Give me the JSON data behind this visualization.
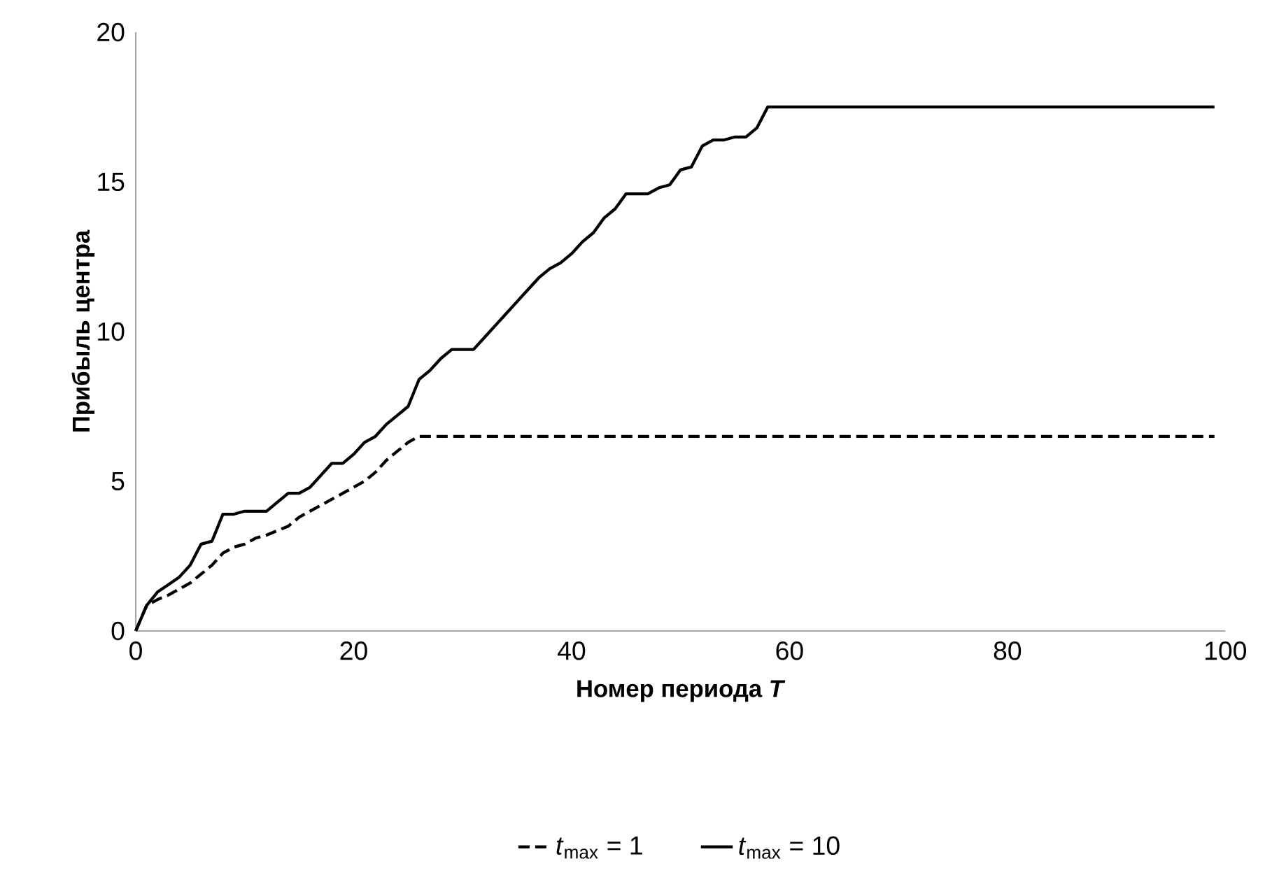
{
  "chart_data": {
    "type": "line",
    "xlabel": "Номер периода *T*",
    "ylabel": "Прибыль  центра",
    "xlim": [
      0,
      100
    ],
    "ylim": [
      0,
      20
    ],
    "xticks": [
      0,
      20,
      40,
      60,
      80,
      100
    ],
    "yticks": [
      0,
      5,
      10,
      15,
      20
    ],
    "legend": "bottom",
    "series": [
      {
        "name": "*t*$_{max}$ = 1",
        "color": "#000000",
        "line_style": "dashed",
        "x": [
          0,
          1,
          2,
          3,
          4,
          5,
          6,
          7,
          8,
          9,
          10,
          11,
          12,
          14,
          15,
          17,
          19,
          21,
          22,
          23,
          24,
          25,
          26,
          27,
          99
        ],
        "values": [
          0,
          0.85,
          1.05,
          1.2,
          1.4,
          1.6,
          1.9,
          2.2,
          2.6,
          2.8,
          2.9,
          3.1,
          3.2,
          3.5,
          3.8,
          4.2,
          4.6,
          5.0,
          5.3,
          5.7,
          6.0,
          6.3,
          6.5,
          6.5,
          6.5
        ]
      },
      {
        "name": "*t*$_{max}$ = 10",
        "color": "#000000",
        "line_style": "solid",
        "x": [
          0,
          1,
          2,
          3,
          4,
          5,
          6,
          7,
          8,
          9,
          10,
          11,
          12,
          13,
          14,
          15,
          16,
          17,
          18,
          19,
          20,
          21,
          22,
          23,
          24,
          25,
          26,
          27,
          28,
          29,
          30,
          31,
          32,
          33,
          34,
          35,
          36,
          37,
          38,
          39,
          40,
          41,
          42,
          43,
          44,
          45,
          46,
          47,
          48,
          49,
          50,
          51,
          52,
          53,
          54,
          55,
          56,
          57,
          58,
          99
        ],
        "values": [
          0,
          0.85,
          1.3,
          1.55,
          1.8,
          2.2,
          2.9,
          3.0,
          3.9,
          3.9,
          4.0,
          4.0,
          4.0,
          4.3,
          4.6,
          4.6,
          4.8,
          5.2,
          5.6,
          5.6,
          5.9,
          6.3,
          6.5,
          6.9,
          7.2,
          7.5,
          8.4,
          8.7,
          9.1,
          9.4,
          9.4,
          9.4,
          9.8,
          10.2,
          10.6,
          11.0,
          11.4,
          11.8,
          12.1,
          12.3,
          12.6,
          13.0,
          13.3,
          13.8,
          14.1,
          14.6,
          14.6,
          14.6,
          14.8,
          14.9,
          15.4,
          15.5,
          16.2,
          16.4,
          16.4,
          16.5,
          16.5,
          16.8,
          17.5,
          17.5
        ]
      }
    ]
  }
}
